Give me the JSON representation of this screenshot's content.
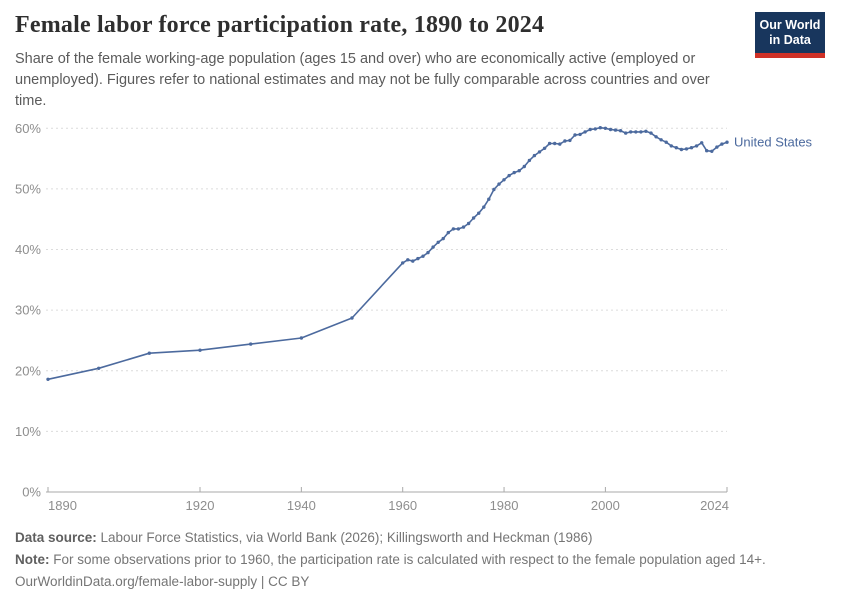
{
  "header": {
    "title": "Female labor force participation rate, 1890 to 2024",
    "subtitle": "Share of the female working-age population (ages 15 and over) who are economically active (employed or unemployed). Figures refer to national estimates and may not be fully comparable across countries and over time.",
    "logo": {
      "line1": "Our World",
      "line2": "in Data",
      "bg_color": "#18365d",
      "accent_color": "#cf3127"
    }
  },
  "chart_data": {
    "type": "line",
    "title": "Female labor force participation rate, 1890 to 2024",
    "xlabel": "",
    "ylabel": "",
    "xlim": [
      1890,
      2024
    ],
    "ylim": [
      0,
      60
    ],
    "x_ticks": [
      1890,
      1920,
      1940,
      1960,
      1980,
      2000,
      2024
    ],
    "y_ticks": [
      0,
      10,
      20,
      30,
      40,
      50,
      60
    ],
    "y_tick_suffix": "%",
    "grid": "horizontal-dashed",
    "legend_position": "inline-right",
    "series": [
      {
        "name": "United States",
        "color": "#4c6a9e",
        "points": [
          [
            1890,
            18.6
          ],
          [
            1900,
            20.4
          ],
          [
            1910,
            22.9
          ],
          [
            1920,
            23.4
          ],
          [
            1930,
            24.4
          ],
          [
            1940,
            25.4
          ],
          [
            1950,
            28.7
          ],
          [
            1960,
            37.8
          ],
          [
            1961,
            38.3
          ],
          [
            1962,
            38.1
          ],
          [
            1963,
            38.5
          ],
          [
            1964,
            38.9
          ],
          [
            1965,
            39.5
          ],
          [
            1966,
            40.4
          ],
          [
            1967,
            41.2
          ],
          [
            1968,
            41.8
          ],
          [
            1969,
            42.8
          ],
          [
            1970,
            43.4
          ],
          [
            1971,
            43.4
          ],
          [
            1972,
            43.7
          ],
          [
            1973,
            44.3
          ],
          [
            1974,
            45.2
          ],
          [
            1975,
            46.0
          ],
          [
            1976,
            47.0
          ],
          [
            1977,
            48.3
          ],
          [
            1978,
            49.9
          ],
          [
            1979,
            50.8
          ],
          [
            1980,
            51.5
          ],
          [
            1981,
            52.2
          ],
          [
            1982,
            52.7
          ],
          [
            1983,
            53.0
          ],
          [
            1984,
            53.7
          ],
          [
            1985,
            54.7
          ],
          [
            1986,
            55.5
          ],
          [
            1987,
            56.1
          ],
          [
            1988,
            56.7
          ],
          [
            1989,
            57.5
          ],
          [
            1990,
            57.5
          ],
          [
            1991,
            57.4
          ],
          [
            1992,
            57.9
          ],
          [
            1993,
            58.0
          ],
          [
            1994,
            58.9
          ],
          [
            1995,
            59.0
          ],
          [
            1996,
            59.4
          ],
          [
            1997,
            59.8
          ],
          [
            1998,
            59.9
          ],
          [
            1999,
            60.1
          ],
          [
            2000,
            60.0
          ],
          [
            2001,
            59.8
          ],
          [
            2002,
            59.7
          ],
          [
            2003,
            59.6
          ],
          [
            2004,
            59.2
          ],
          [
            2005,
            59.4
          ],
          [
            2006,
            59.4
          ],
          [
            2007,
            59.4
          ],
          [
            2008,
            59.5
          ],
          [
            2009,
            59.2
          ],
          [
            2010,
            58.6
          ],
          [
            2011,
            58.1
          ],
          [
            2012,
            57.7
          ],
          [
            2013,
            57.1
          ],
          [
            2014,
            56.8
          ],
          [
            2015,
            56.5
          ],
          [
            2016,
            56.6
          ],
          [
            2017,
            56.8
          ],
          [
            2018,
            57.1
          ],
          [
            2019,
            57.6
          ],
          [
            2020,
            56.3
          ],
          [
            2021,
            56.2
          ],
          [
            2022,
            56.9
          ],
          [
            2023,
            57.4
          ],
          [
            2024,
            57.7
          ]
        ]
      }
    ]
  },
  "footer": {
    "data_source_label": "Data source:",
    "data_source_text": " Labour Force Statistics, via World Bank (2026); Killingsworth and Heckman (1986)",
    "note_label": "Note:",
    "note_text": " For some observations prior to 1960, the participation rate is calculated with respect to the female population aged 14+.",
    "link_text": "OurWorldinData.org/female-labor-supply | CC BY"
  }
}
